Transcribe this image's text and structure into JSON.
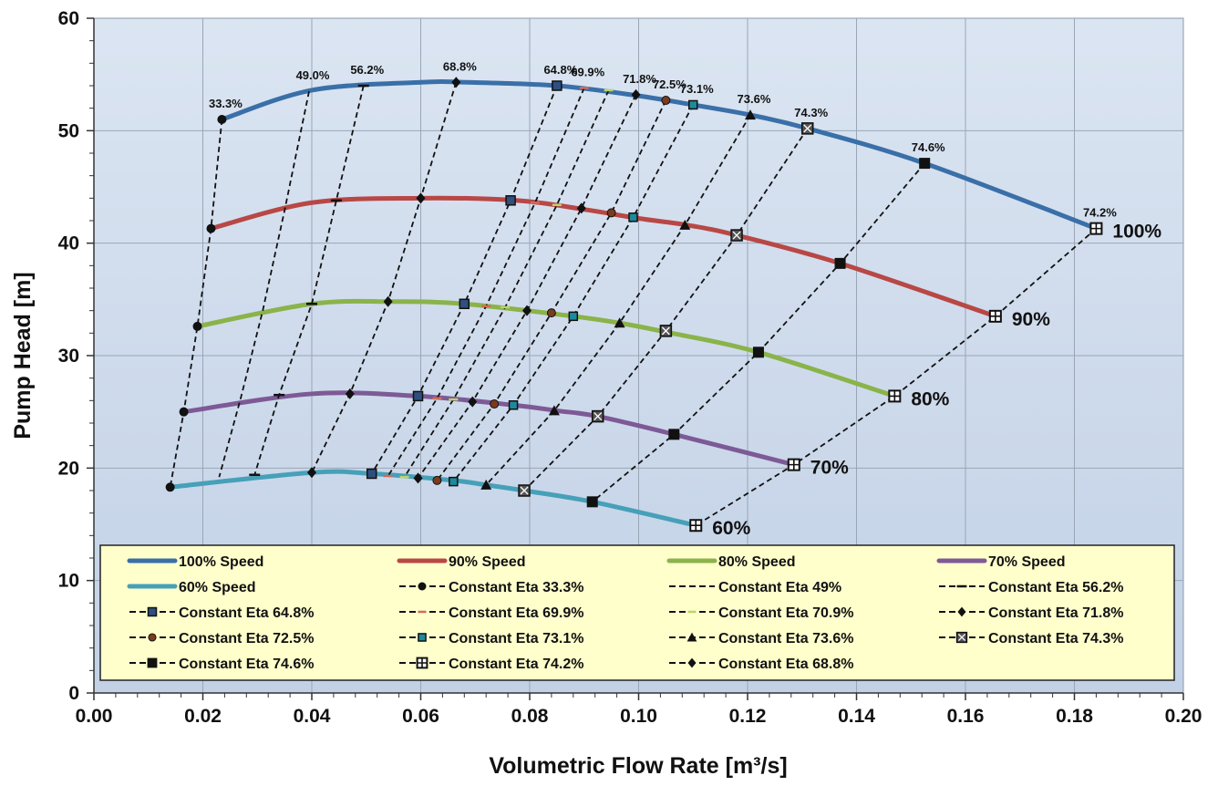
{
  "chart_data": {
    "type": "line",
    "title": "",
    "xlabel": "Volumetric Flow Rate [m³/s]",
    "ylabel": "Pump Head [m]",
    "xlim": [
      0,
      0.2
    ],
    "ylim": [
      0,
      60
    ],
    "x_ticks": [
      "0.00",
      "0.02",
      "0.04",
      "0.06",
      "0.08",
      "0.10",
      "0.12",
      "0.14",
      "0.16",
      "0.18",
      "0.20"
    ],
    "y_ticks": [
      "0",
      "10",
      "20",
      "30",
      "40",
      "50",
      "60"
    ],
    "grid": true,
    "legend_position": "bottom-inside",
    "speed_curves": [
      {
        "name": "100% Speed",
        "label": "100%",
        "color": "#3a6fa8",
        "x": [
          0.0235,
          0.04,
          0.06,
          0.0685,
          0.085,
          0.1,
          0.11,
          0.1205,
          0.131,
          0.1525,
          0.184
        ],
        "y": [
          51.0,
          53.6,
          54.3,
          54.3,
          54.0,
          53.1,
          52.3,
          51.4,
          50.2,
          47.1,
          41.3
        ]
      },
      {
        "name": "90% Speed",
        "label": "90%",
        "color": "#b84845",
        "x": [
          0.0215,
          0.04,
          0.06,
          0.0775,
          0.09,
          0.1,
          0.109,
          0.118,
          0.137,
          0.1655
        ],
        "y": [
          41.3,
          43.6,
          44.0,
          43.8,
          43.0,
          42.2,
          41.6,
          40.7,
          38.2,
          33.5
        ]
      },
      {
        "name": "80% Speed",
        "label": "80%",
        "color": "#8ab34a",
        "x": [
          0.019,
          0.04,
          0.055,
          0.068,
          0.088,
          0.0965,
          0.105,
          0.122,
          0.147
        ],
        "y": [
          32.6,
          34.6,
          34.8,
          34.6,
          33.5,
          32.9,
          32.1,
          30.3,
          26.4
        ]
      },
      {
        "name": "70% Speed",
        "label": "70%",
        "color": "#7d5a96",
        "x": [
          0.0165,
          0.04,
          0.0595,
          0.077,
          0.085,
          0.0925,
          0.1065,
          0.1285
        ],
        "y": [
          25.0,
          26.6,
          26.4,
          25.6,
          25.1,
          24.6,
          23.0,
          20.3
        ]
      },
      {
        "name": "60% Speed",
        "label": "60%",
        "color": "#46a0b8",
        "x": [
          0.014,
          0.04,
          0.051,
          0.066,
          0.072,
          0.079,
          0.0915,
          0.1105
        ],
        "y": [
          18.3,
          19.6,
          19.5,
          18.9,
          18.5,
          18.0,
          17.0,
          14.9
        ]
      }
    ],
    "eta_lines": [
      {
        "name": "Constant Eta 33.3%",
        "label": "33.3%",
        "marker": "circle",
        "points": [
          [
            0.0235,
            51.0
          ],
          [
            0.0215,
            41.3
          ],
          [
            0.019,
            32.6
          ],
          [
            0.0165,
            25.0
          ],
          [
            0.014,
            18.3
          ]
        ]
      },
      {
        "name": "Constant Eta 49%",
        "label": "49.0%",
        "marker": "none",
        "points": [
          [
            0.0395,
            53.5
          ],
          [
            0.035,
            42.9
          ],
          [
            0.031,
            34.0
          ],
          [
            0.027,
            26.3
          ],
          [
            0.023,
            19.2
          ]
        ]
      },
      {
        "name": "Constant Eta 56.2%",
        "label": "56.2%",
        "marker": "dash",
        "points": [
          [
            0.0495,
            54.0
          ],
          [
            0.0445,
            43.8
          ],
          [
            0.04,
            34.6
          ],
          [
            0.034,
            26.5
          ],
          [
            0.0295,
            19.4
          ]
        ]
      },
      {
        "name": "Constant Eta 68.8%",
        "label": "68.8%",
        "marker": "diamond",
        "points": [
          [
            0.0665,
            54.3
          ],
          [
            0.06,
            44.0
          ],
          [
            0.054,
            34.8
          ],
          [
            0.047,
            26.6
          ],
          [
            0.04,
            19.6
          ]
        ]
      },
      {
        "name": "Constant Eta 64.8%",
        "label": "64.8%",
        "marker": "square",
        "points": [
          [
            0.085,
            54.0
          ],
          [
            0.0765,
            43.8
          ],
          [
            0.068,
            34.6
          ],
          [
            0.0595,
            26.4
          ],
          [
            0.051,
            19.5
          ]
        ]
      },
      {
        "name": "Constant Eta 69.9%",
        "label": "69.9%",
        "marker": "dash-red",
        "points": [
          [
            0.09,
            53.8
          ],
          [
            0.081,
            43.6
          ],
          [
            0.072,
            34.4
          ],
          [
            0.063,
            26.2
          ],
          [
            0.054,
            19.3
          ]
        ]
      },
      {
        "name": "Constant Eta 70.9%",
        "label": "",
        "marker": "dash-green",
        "points": [
          [
            0.0945,
            53.6
          ],
          [
            0.085,
            43.4
          ],
          [
            0.0755,
            34.3
          ],
          [
            0.066,
            26.1
          ],
          [
            0.057,
            19.2
          ]
        ]
      },
      {
        "name": "Constant Eta 71.8%",
        "label": "71.8%",
        "marker": "diamond",
        "points": [
          [
            0.0995,
            53.2
          ],
          [
            0.0895,
            43.1
          ],
          [
            0.0795,
            34.0
          ],
          [
            0.0695,
            25.9
          ],
          [
            0.0595,
            19.1
          ]
        ]
      },
      {
        "name": "Constant Eta 72.5%",
        "label": "72.5%",
        "marker": "circle-brown",
        "points": [
          [
            0.105,
            52.7
          ],
          [
            0.095,
            42.7
          ],
          [
            0.084,
            33.8
          ],
          [
            0.0735,
            25.7
          ],
          [
            0.063,
            18.9
          ]
        ]
      },
      {
        "name": "Constant Eta 73.1%",
        "label": "73.1%",
        "marker": "square-teal",
        "points": [
          [
            0.11,
            52.3
          ],
          [
            0.099,
            42.3
          ],
          [
            0.088,
            33.5
          ],
          [
            0.077,
            25.6
          ],
          [
            0.066,
            18.8
          ]
        ]
      },
      {
        "name": "Constant Eta 73.6%",
        "label": "73.6%",
        "marker": "triangle",
        "points": [
          [
            0.1205,
            51.4
          ],
          [
            0.1085,
            41.6
          ],
          [
            0.0965,
            32.9
          ],
          [
            0.0845,
            25.1
          ],
          [
            0.072,
            18.5
          ]
        ]
      },
      {
        "name": "Constant Eta 74.3%",
        "label": "74.3%",
        "marker": "square-x",
        "points": [
          [
            0.131,
            50.2
          ],
          [
            0.118,
            40.7
          ],
          [
            0.105,
            32.2
          ],
          [
            0.0925,
            24.6
          ],
          [
            0.079,
            18.0
          ]
        ]
      },
      {
        "name": "Constant Eta 74.6%",
        "label": "74.6%",
        "marker": "square-filled",
        "points": [
          [
            0.1525,
            47.1
          ],
          [
            0.137,
            38.2
          ],
          [
            0.122,
            30.3
          ],
          [
            0.1065,
            23.0
          ],
          [
            0.0915,
            17.0
          ]
        ]
      },
      {
        "name": "Constant Eta 74.2%",
        "label": "74.2%",
        "marker": "square-plus",
        "points": [
          [
            0.184,
            41.3
          ],
          [
            0.1655,
            33.5
          ],
          [
            0.147,
            26.4
          ],
          [
            0.1285,
            20.3
          ],
          [
            0.1105,
            14.9
          ]
        ]
      }
    ],
    "legend": [
      {
        "label": "100% Speed",
        "style": "line",
        "color": "#3a6fa8"
      },
      {
        "label": "90% Speed",
        "style": "line",
        "color": "#b84845"
      },
      {
        "label": "80% Speed",
        "style": "line",
        "color": "#8ab34a"
      },
      {
        "label": "70% Speed",
        "style": "line",
        "color": "#7d5a96"
      },
      {
        "label": "60% Speed",
        "style": "line",
        "color": "#46a0b8"
      },
      {
        "label": "Constant Eta 33.3%",
        "style": "eta",
        "marker": "circle"
      },
      {
        "label": "Constant Eta 49%",
        "style": "eta",
        "marker": "none"
      },
      {
        "label": "Constant Eta 56.2%",
        "style": "eta",
        "marker": "dash"
      },
      {
        "label": "Constant Eta 64.8%",
        "style": "eta",
        "marker": "square"
      },
      {
        "label": "Constant Eta 69.9%",
        "style": "eta",
        "marker": "dash-red"
      },
      {
        "label": "Constant Eta 70.9%",
        "style": "eta",
        "marker": "dash-green"
      },
      {
        "label": "Constant Eta 71.8%",
        "style": "eta",
        "marker": "diamond"
      },
      {
        "label": "Constant Eta 72.5%",
        "style": "eta",
        "marker": "circle-brown"
      },
      {
        "label": "Constant Eta 73.1%",
        "style": "eta",
        "marker": "square-teal"
      },
      {
        "label": "Constant Eta 73.6%",
        "style": "eta",
        "marker": "triangle"
      },
      {
        "label": "Constant Eta 74.3%",
        "style": "eta",
        "marker": "square-x"
      },
      {
        "label": "Constant Eta 74.6%",
        "style": "eta",
        "marker": "square-filled"
      },
      {
        "label": "Constant Eta 74.2%",
        "style": "eta",
        "marker": "square-plus"
      },
      {
        "label": "Constant Eta 68.8%",
        "style": "eta",
        "marker": "diamond"
      }
    ],
    "colors": {
      "plot_background": "#cbd8ea",
      "legend_background": "#ffffcc",
      "grid": "#9aa6b6",
      "eta_line": "#111111"
    }
  }
}
